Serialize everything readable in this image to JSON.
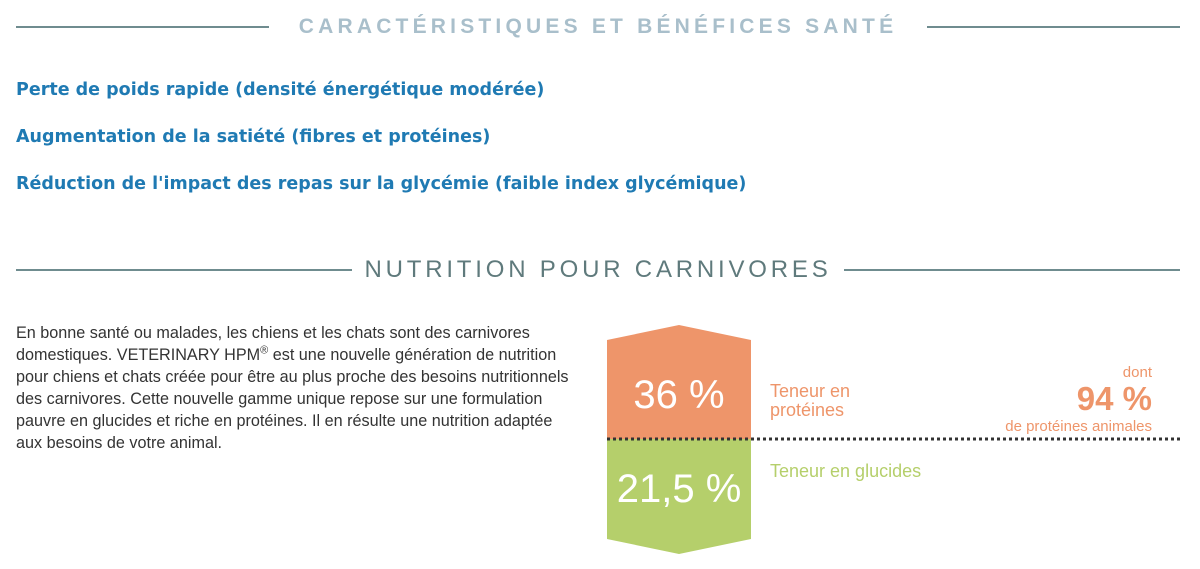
{
  "section1": {
    "title": "CARACTÉRISTIQUES ET BÉNÉFICES SANTÉ",
    "benefits": [
      "Perte de poids rapide (densité énergétique modérée)",
      "Augmentation de la satiété (fibres et protéines)",
      "Réduction de l'impact des repas sur la glycémie (faible index glycémique)"
    ]
  },
  "section2": {
    "title": "NUTRITION POUR CARNIVORES",
    "intro_part1": "En bonne santé ou malades, les chiens et les chats sont des carnivores domestiques. VETERINARY HPM",
    "intro_sup": "®",
    "intro_part2": " est une nouvelle génération de nutrition pour chiens et chats créée pour être au plus proche des besoins nutritionnels des carnivores. Cette nouvelle gamme unique repose sur une formulation pauvre en glucides et riche en protéines. Il en résulte une nutrition adaptée aux besoins de votre animal."
  },
  "infographic": {
    "protein_value": "36 %",
    "protein_label_line1": "Teneur en",
    "protein_label_line2": "protéines",
    "dont": "dont",
    "animal_value": "94 %",
    "animal_label": "de protéines animales",
    "glucid_value": "21,5 %",
    "glucid_label": "Teneur en glucides",
    "colors": {
      "protein": "#ee956a",
      "glucid": "#b5cf6b",
      "divider": "#333333",
      "text_on_shape": "#ffffff"
    }
  }
}
